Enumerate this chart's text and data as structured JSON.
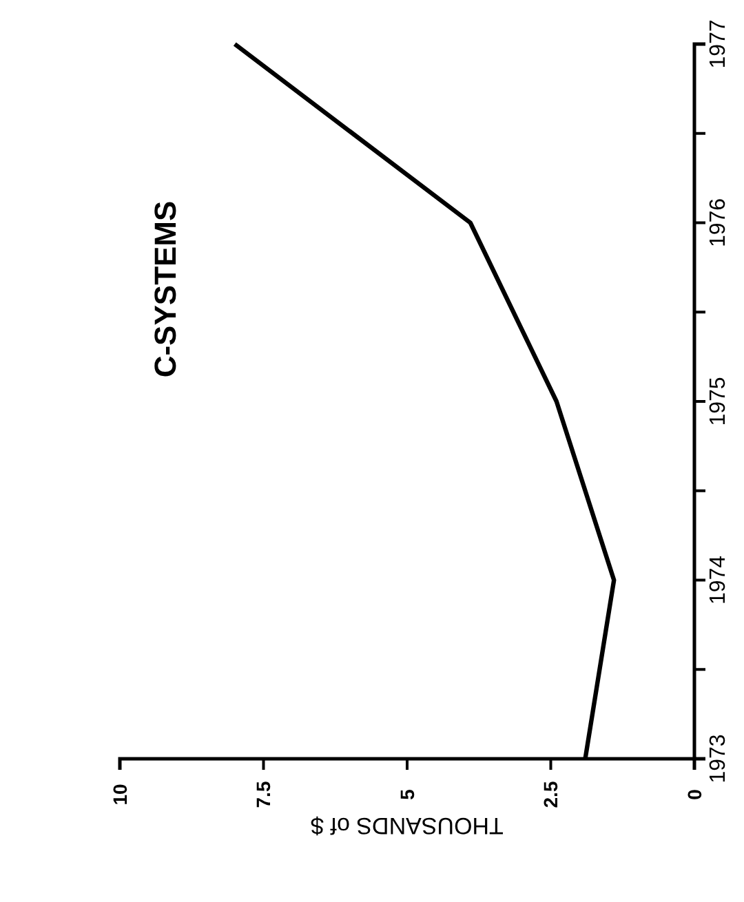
{
  "chart_data": {
    "type": "line",
    "title": "C-SYSTEMS",
    "xlabel": "THOUSANDS of $",
    "series": [
      {
        "color": "#000000",
        "axis": "y2",
        "x": [
          1.9,
          1.4,
          2.4,
          3.9,
          8.0
        ],
        "values": [
          1973,
          1974,
          1975,
          1976,
          1977
        ]
      }
    ],
    "xlim": [
      10,
      0
    ],
    "xticks": [
      10,
      7.5,
      5,
      2.5,
      0
    ],
    "y2lim": [
      1973,
      1977
    ],
    "y2ticks": [
      1973,
      {
        "value": 1973.5,
        "label": null
      },
      1974,
      {
        "value": 1974.5,
        "label": null
      },
      1975,
      {
        "value": 1975.5,
        "label": null
      },
      1976,
      {
        "value": 1976.5,
        "label": null
      },
      1977
    ],
    "grid": false,
    "marker": "none",
    "line_style": "solid"
  }
}
